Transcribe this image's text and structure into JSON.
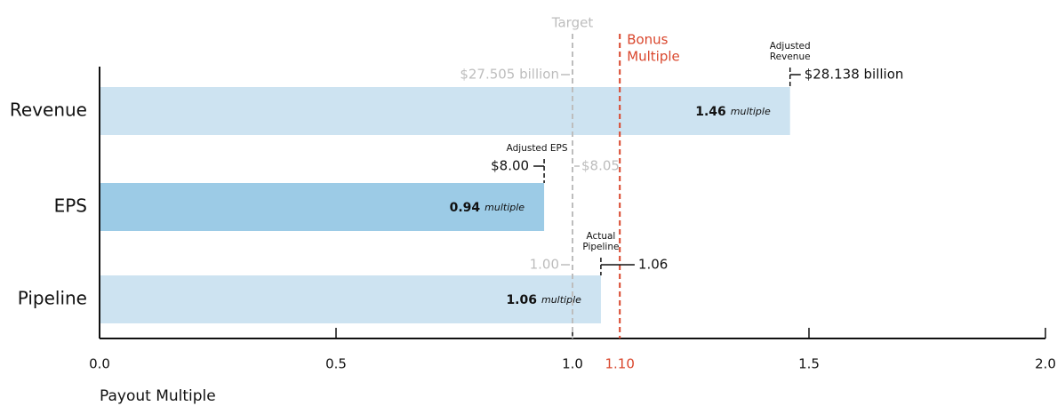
{
  "chart_data": {
    "type": "bar",
    "orientation": "horizontal",
    "categories": [
      "Revenue",
      "EPS",
      "Pipeline"
    ],
    "values": [
      1.46,
      0.94,
      1.06
    ],
    "value_labels": [
      "1.46",
      "0.94",
      "1.06"
    ],
    "value_label_unit": "multiple",
    "colors": [
      "#cde3f1",
      "#9ccbe6",
      "#cde3f1"
    ],
    "xlim": [
      0,
      2
    ],
    "xticks": [
      {
        "value": 0,
        "label": "0.0"
      },
      0.5,
      {
        "value": 1,
        "label": "1.0"
      },
      1.5,
      {
        "value": 2,
        "label": "2.0"
      }
    ],
    "x_label": "Payout Multiple",
    "reference_lines": [
      {
        "label": [
          "Target"
        ],
        "value": 1.0,
        "color": "#bdbdbd"
      },
      {
        "label": [
          "Bonus",
          "Multiple"
        ],
        "value": 1.1,
        "value_label": "1.10",
        "color": "#d9452b"
      }
    ],
    "annotations": [
      {
        "actual_title": [
          "Adjusted",
          "Revenue"
        ],
        "actual": "$28.138 billion",
        "target": "$27.505 billion"
      },
      {
        "actual_title": [
          "Adjusted EPS"
        ],
        "actual": "$8.00",
        "target": "$8.05"
      },
      {
        "actual_title": [
          "Actual",
          "Pipeline"
        ],
        "actual": "1.06",
        "target": "1.00"
      }
    ]
  }
}
